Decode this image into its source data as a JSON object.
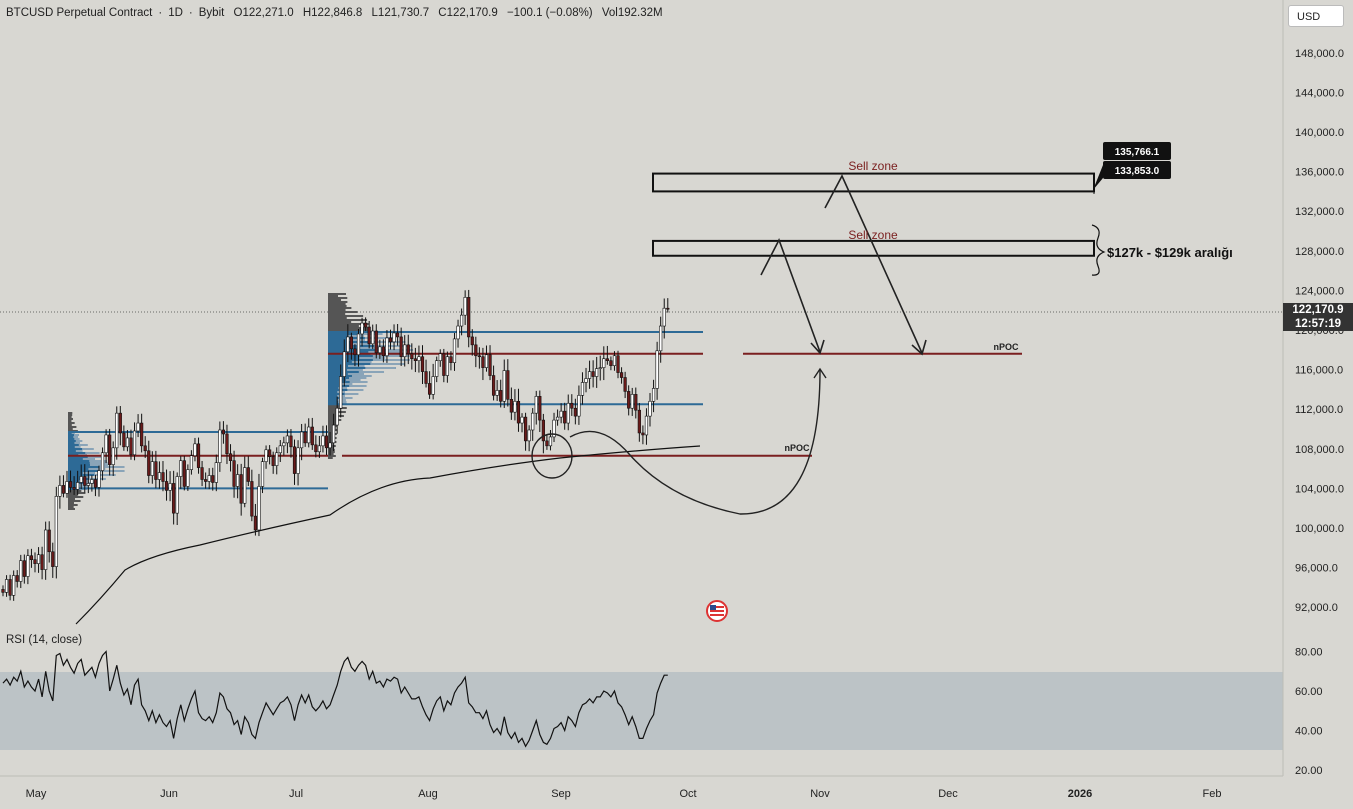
{
  "header": {
    "symbol": "BTCUSD Perpetual Contract",
    "interval": "1D",
    "exchange": "Bybit",
    "open": "O122,271.0",
    "high": "H122,846.8",
    "low": "L121,730.7",
    "close": "C122,170.9",
    "change": "−100.1 (−0.08%)",
    "volume": "Vol192.32M"
  },
  "currency_button": "USD",
  "last_price": {
    "value": "122,170.9",
    "countdown": "12:57:19"
  },
  "colors": {
    "up": "#ffffff",
    "down": "#6b1a1a",
    "zone_line_red": "#7a1f1f",
    "hvn_blue": "#2d6a96",
    "rsi_band": "#bcc3c6"
  },
  "annotations": {
    "sell_zone_upper": "Sell zone",
    "sell_zone_lower": "Sell zone",
    "range_note": "$127k - $129k aralığı",
    "npoc_upper": "nPOC",
    "npoc_lower": "nPOC",
    "tag_high": "135,766.1",
    "tag_low": "133,853.0"
  },
  "rsi_label": "RSI (14, close)",
  "chart_data": {
    "type": "candlestick",
    "price_axis": {
      "ticks": [
        "148,000.0",
        "144,000.0",
        "140,000.0",
        "136,000.0",
        "132,000.0",
        "128,000.0",
        "124,000.0",
        "120,000.0",
        "116,000.0",
        "112,000.0",
        "108,000.0",
        "104,000.0",
        "100,000.0",
        "96,000.0",
        "92,000.0"
      ],
      "range": [
        88000,
        150000
      ]
    },
    "rsi_axis": {
      "ticks": [
        "80.00",
        "60.00",
        "40.00",
        "20.00"
      ],
      "band": [
        30,
        70
      ]
    },
    "x_labels": [
      "May",
      "Jun",
      "Jul",
      "Aug",
      "Sep",
      "Oct",
      "Nov",
      "Dec",
      "2026",
      "Feb"
    ],
    "levels": {
      "sell_zone_1": [
        134000,
        135800
      ],
      "sell_zone_2": [
        127500,
        129000
      ],
      "upper_npoc": 117600,
      "lower_npoc": 107300,
      "va_high_recent": 119800,
      "va_low_recent": 112500,
      "va_high_early": 109700,
      "va_low_early": 104000
    },
    "closes": [
      93500,
      94800,
      93200,
      95200,
      94600,
      96700,
      95100,
      97200,
      96800,
      96400,
      97300,
      95800,
      99800,
      97600,
      96100,
      103200,
      104300,
      103500,
      104700,
      104100,
      103900,
      104600,
      105200,
      104300,
      104500,
      104900,
      104100,
      105800,
      107600,
      109400,
      106400,
      108100,
      111600,
      109600,
      108200,
      109100,
      107400,
      109800,
      110600,
      108300,
      107800,
      105300,
      106700,
      104900,
      105600,
      104700,
      103800,
      104500,
      101500,
      105200,
      106800,
      104200,
      105900,
      107300,
      108500,
      106100,
      104900,
      104700,
      105300,
      104600,
      106600,
      109900,
      109500,
      107500,
      106800,
      104200,
      105400,
      102500,
      106100,
      104700,
      101200,
      99800,
      104200,
      106700,
      107900,
      107200,
      106300,
      107600,
      108300,
      108600,
      109300,
      108200,
      105500,
      108100,
      109700,
      108600,
      110200,
      108400,
      107700,
      108300,
      109300,
      108100,
      108600,
      110400,
      112100,
      115300,
      117800,
      119300,
      118100,
      117500,
      119600,
      120700,
      120300,
      118600,
      119900,
      117700,
      118300,
      117400,
      119200,
      118800,
      119700,
      119300,
      117300,
      118500,
      117600,
      117100,
      116900,
      117300,
      115800,
      114600,
      113500,
      115300,
      116900,
      117600,
      115400,
      117300,
      116700,
      119100,
      120400,
      121500,
      123300,
      119300,
      118500,
      117400,
      117300,
      116200,
      117500,
      115400,
      113400,
      113900,
      112800,
      115900,
      113000,
      111700,
      112800,
      110600,
      111200,
      108800,
      109900,
      111600,
      113300,
      110900,
      108800,
      108300,
      109200,
      110900,
      111200,
      111800,
      110600,
      112600,
      112100,
      111300,
      113400,
      114700,
      115100,
      115800,
      115300,
      116100,
      116200,
      117100,
      116900,
      116400,
      117400,
      115700,
      115200,
      113800,
      112100,
      113500,
      111900,
      109600,
      109400,
      111300,
      112800,
      114100,
      117900,
      120400,
      122200,
      122170.9
    ],
    "sma": [
      [
        0,
        96000
      ],
      [
        20,
        101000
      ],
      [
        40,
        104500
      ],
      [
        60,
        106000
      ],
      [
        80,
        106900
      ],
      [
        100,
        107200
      ],
      [
        120,
        107900
      ],
      [
        140,
        108500
      ],
      [
        160,
        109200
      ],
      [
        180,
        109400
      ],
      [
        195,
        109900
      ]
    ],
    "rsi": [
      64,
      66,
      63,
      67,
      65,
      70,
      62,
      65,
      62,
      60,
      66,
      57,
      70,
      60,
      55,
      78,
      79,
      73,
      76,
      72,
      69,
      74,
      76,
      68,
      70,
      72,
      67,
      74,
      78,
      80,
      60,
      66,
      73,
      64,
      58,
      61,
      53,
      63,
      66,
      53,
      50,
      45,
      50,
      44,
      48,
      44,
      42,
      45,
      36,
      46,
      53,
      45,
      51,
      56,
      60,
      49,
      46,
      45,
      47,
      44,
      49,
      59,
      57,
      51,
      49,
      43,
      45,
      38,
      47,
      44,
      38,
      36,
      44,
      49,
      54,
      51,
      48,
      51,
      54,
      55,
      57,
      53,
      45,
      53,
      58,
      54,
      58,
      52,
      50,
      52,
      55,
      51,
      53,
      58,
      63,
      70,
      75,
      77,
      72,
      70,
      73,
      75,
      73,
      66,
      70,
      64,
      65,
      62,
      66,
      65,
      67,
      66,
      59,
      62,
      59,
      56,
      56,
      57,
      52,
      48,
      45,
      51,
      55,
      57,
      50,
      55,
      53,
      59,
      62,
      64,
      67,
      54,
      52,
      49,
      49,
      46,
      50,
      43,
      39,
      41,
      38,
      47,
      39,
      36,
      39,
      34,
      36,
      32,
      35,
      40,
      45,
      38,
      34,
      33,
      36,
      41,
      42,
      44,
      40,
      47,
      45,
      42,
      49,
      53,
      54,
      56,
      54,
      57,
      57,
      60,
      59,
      57,
      60,
      54,
      52,
      48,
      43,
      47,
      42,
      36,
      36,
      41,
      45,
      48,
      59,
      64,
      68,
      68
    ],
    "annotations": [
      "Sell zone",
      "Sell zone",
      "$127k - $129k aralığı",
      "nPOC",
      "nPOC",
      "135,766.1",
      "133,853.0"
    ]
  }
}
